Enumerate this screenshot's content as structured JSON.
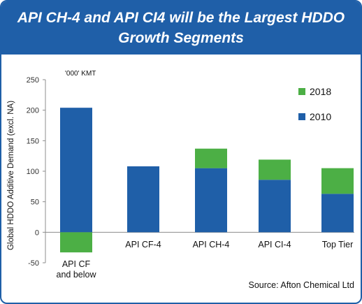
{
  "title": "API CH-4 and API CI4 will be the Largest HDDO Growth Segments",
  "source": "Source: Afton Chemical Ltd",
  "colors": {
    "frame": "#1f5fa8",
    "series_2010": "#1f5fa8",
    "series_2018": "#4caf45"
  },
  "chart_data": {
    "type": "bar",
    "stacked": true,
    "title": "API CH-4 and API CI4 will be the Largest HDDO Growth Segments",
    "ylabel": "Global HDDO Additive Demand (excl. NA)",
    "yunit": "'000' KMT",
    "ylim": [
      -50,
      250
    ],
    "yticks": [
      -50,
      0,
      50,
      100,
      150,
      200,
      250
    ],
    "grid": false,
    "legend_position": "right",
    "categories": [
      "API CF and below",
      "API CF-4",
      "API CH-4",
      "API CI-4",
      "Top Tier"
    ],
    "series": [
      {
        "name": "2010",
        "color": "#1f5fa8",
        "values": [
          204,
          108,
          105,
          86,
          63
        ]
      },
      {
        "name": "2018",
        "color": "#4caf45",
        "values": [
          -33,
          0,
          32,
          33,
          42
        ]
      }
    ],
    "legend": [
      "2018",
      "2010"
    ]
  }
}
